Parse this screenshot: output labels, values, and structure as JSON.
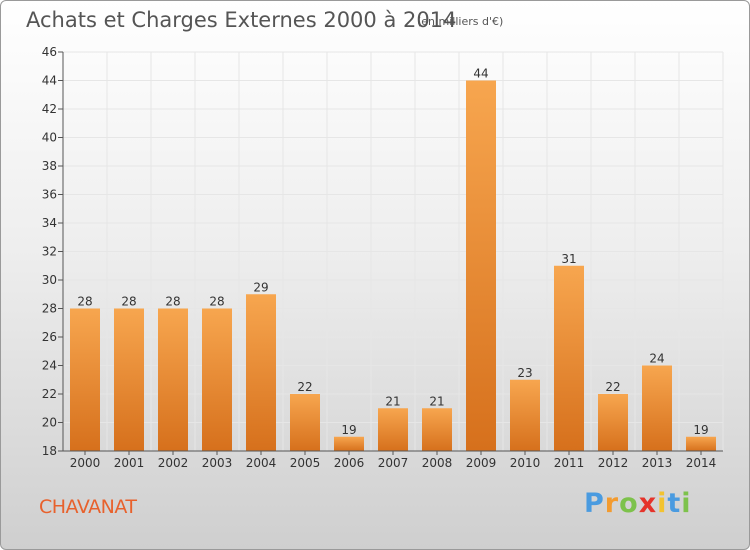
{
  "header": {
    "title": "Achats et Charges Externes 2000 à 2014",
    "unit": "(en milliers d'€)"
  },
  "footer": {
    "commune": "CHAVANAT",
    "logo_text": "Proxiti"
  },
  "colors": {
    "bar_top": "#f7a64f",
    "bar_bottom": "#d6701c",
    "commune": "#e8612c"
  },
  "chart_data": {
    "type": "bar",
    "title": "Achats et Charges Externes 2000 à 2014",
    "subtitle": "(en milliers d'€)",
    "categories": [
      "2000",
      "2001",
      "2002",
      "2003",
      "2004",
      "2005",
      "2006",
      "2007",
      "2008",
      "2009",
      "2010",
      "2011",
      "2012",
      "2013",
      "2014"
    ],
    "values": [
      28,
      28,
      28,
      28,
      29,
      22,
      19,
      21,
      21,
      44,
      23,
      31,
      22,
      24,
      19
    ],
    "ylim": [
      18,
      46
    ],
    "yticks": [
      18,
      20,
      22,
      24,
      26,
      28,
      30,
      32,
      34,
      36,
      38,
      40,
      42,
      44,
      46
    ],
    "xlabel": "",
    "ylabel": "",
    "grid": true,
    "data_labels": true
  }
}
